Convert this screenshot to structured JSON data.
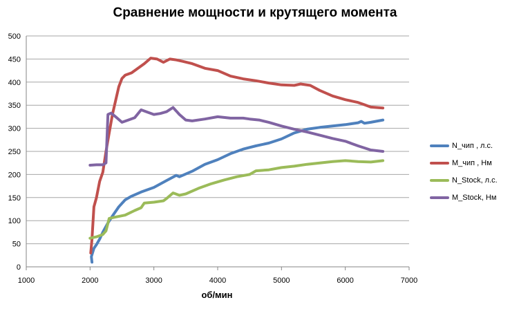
{
  "chart_data": {
    "type": "line",
    "title": "Сравнение мощности и крутящего момента",
    "xlabel": "об/мин",
    "ylabel": "",
    "xlim": [
      1000,
      7000
    ],
    "ylim": [
      0,
      500
    ],
    "xticks": [
      1000,
      2000,
      3000,
      4000,
      5000,
      6000,
      7000
    ],
    "yticks": [
      0,
      50,
      100,
      150,
      200,
      250,
      300,
      350,
      400,
      450,
      500
    ],
    "grid": "horizontal",
    "legend_position": "right",
    "series": [
      {
        "name": "N_чип  , л.с.",
        "color": "#4f81bd",
        "points": [
          [
            2030,
            10
          ],
          [
            2020,
            22
          ],
          [
            2060,
            40
          ],
          [
            2100,
            48
          ],
          [
            2150,
            60
          ],
          [
            2200,
            75
          ],
          [
            2280,
            95
          ],
          [
            2350,
            110
          ],
          [
            2450,
            130
          ],
          [
            2550,
            145
          ],
          [
            2650,
            153
          ],
          [
            2800,
            162
          ],
          [
            3000,
            172
          ],
          [
            3200,
            187
          ],
          [
            3350,
            198
          ],
          [
            3400,
            195
          ],
          [
            3600,
            207
          ],
          [
            3800,
            222
          ],
          [
            4000,
            232
          ],
          [
            4200,
            245
          ],
          [
            4400,
            255
          ],
          [
            4600,
            262
          ],
          [
            4800,
            268
          ],
          [
            5000,
            277
          ],
          [
            5200,
            290
          ],
          [
            5400,
            298
          ],
          [
            5600,
            302
          ],
          [
            5800,
            305
          ],
          [
            6000,
            308
          ],
          [
            6200,
            312
          ],
          [
            6250,
            315
          ],
          [
            6300,
            311
          ],
          [
            6400,
            313
          ],
          [
            6590,
            318
          ]
        ]
      },
      {
        "name": "M_чип  , Нм",
        "color": "#c0504d",
        "points": [
          [
            2010,
            30
          ],
          [
            2030,
            60
          ],
          [
            2060,
            130
          ],
          [
            2100,
            150
          ],
          [
            2150,
            185
          ],
          [
            2200,
            205
          ],
          [
            2250,
            250
          ],
          [
            2300,
            290
          ],
          [
            2350,
            330
          ],
          [
            2400,
            360
          ],
          [
            2450,
            390
          ],
          [
            2500,
            408
          ],
          [
            2550,
            415
          ],
          [
            2650,
            420
          ],
          [
            2750,
            430
          ],
          [
            2850,
            440
          ],
          [
            2950,
            452
          ],
          [
            3050,
            450
          ],
          [
            3150,
            443
          ],
          [
            3250,
            450
          ],
          [
            3350,
            448
          ],
          [
            3450,
            445
          ],
          [
            3600,
            440
          ],
          [
            3800,
            430
          ],
          [
            4000,
            425
          ],
          [
            4200,
            413
          ],
          [
            4400,
            407
          ],
          [
            4600,
            403
          ],
          [
            4800,
            398
          ],
          [
            5000,
            394
          ],
          [
            5200,
            393
          ],
          [
            5300,
            396
          ],
          [
            5450,
            393
          ],
          [
            5600,
            382
          ],
          [
            5800,
            370
          ],
          [
            6000,
            362
          ],
          [
            6200,
            356
          ],
          [
            6300,
            351
          ],
          [
            6400,
            346
          ],
          [
            6590,
            344
          ]
        ]
      },
      {
        "name": "N_Stock, л.с.",
        "color": "#9bbb59",
        "points": [
          [
            2000,
            62
          ],
          [
            2100,
            65
          ],
          [
            2200,
            70
          ],
          [
            2250,
            78
          ],
          [
            2300,
            105
          ],
          [
            2400,
            108
          ],
          [
            2550,
            112
          ],
          [
            2700,
            122
          ],
          [
            2800,
            128
          ],
          [
            2850,
            138
          ],
          [
            3000,
            140
          ],
          [
            3150,
            143
          ],
          [
            3200,
            148
          ],
          [
            3300,
            160
          ],
          [
            3400,
            155
          ],
          [
            3500,
            158
          ],
          [
            3700,
            170
          ],
          [
            3900,
            180
          ],
          [
            4100,
            188
          ],
          [
            4300,
            195
          ],
          [
            4500,
            200
          ],
          [
            4600,
            208
          ],
          [
            4800,
            210
          ],
          [
            5000,
            215
          ],
          [
            5200,
            218
          ],
          [
            5400,
            222
          ],
          [
            5600,
            225
          ],
          [
            5800,
            228
          ],
          [
            6000,
            230
          ],
          [
            6200,
            228
          ],
          [
            6400,
            227
          ],
          [
            6590,
            230
          ]
        ]
      },
      {
        "name": "M_Stock, Нм",
        "color": "#8064a2",
        "points": [
          [
            2000,
            220
          ],
          [
            2100,
            221
          ],
          [
            2200,
            221
          ],
          [
            2250,
            225
          ],
          [
            2280,
            330
          ],
          [
            2330,
            333
          ],
          [
            2400,
            325
          ],
          [
            2500,
            313
          ],
          [
            2600,
            318
          ],
          [
            2700,
            323
          ],
          [
            2800,
            340
          ],
          [
            2900,
            335
          ],
          [
            3000,
            330
          ],
          [
            3100,
            332
          ],
          [
            3200,
            336
          ],
          [
            3300,
            345
          ],
          [
            3400,
            330
          ],
          [
            3500,
            318
          ],
          [
            3600,
            316
          ],
          [
            3800,
            320
          ],
          [
            4000,
            325
          ],
          [
            4200,
            322
          ],
          [
            4400,
            322
          ],
          [
            4500,
            320
          ],
          [
            4650,
            318
          ],
          [
            4800,
            313
          ],
          [
            5000,
            305
          ],
          [
            5200,
            298
          ],
          [
            5400,
            292
          ],
          [
            5600,
            285
          ],
          [
            5800,
            278
          ],
          [
            6000,
            272
          ],
          [
            6200,
            262
          ],
          [
            6400,
            253
          ],
          [
            6590,
            250
          ]
        ]
      }
    ]
  }
}
